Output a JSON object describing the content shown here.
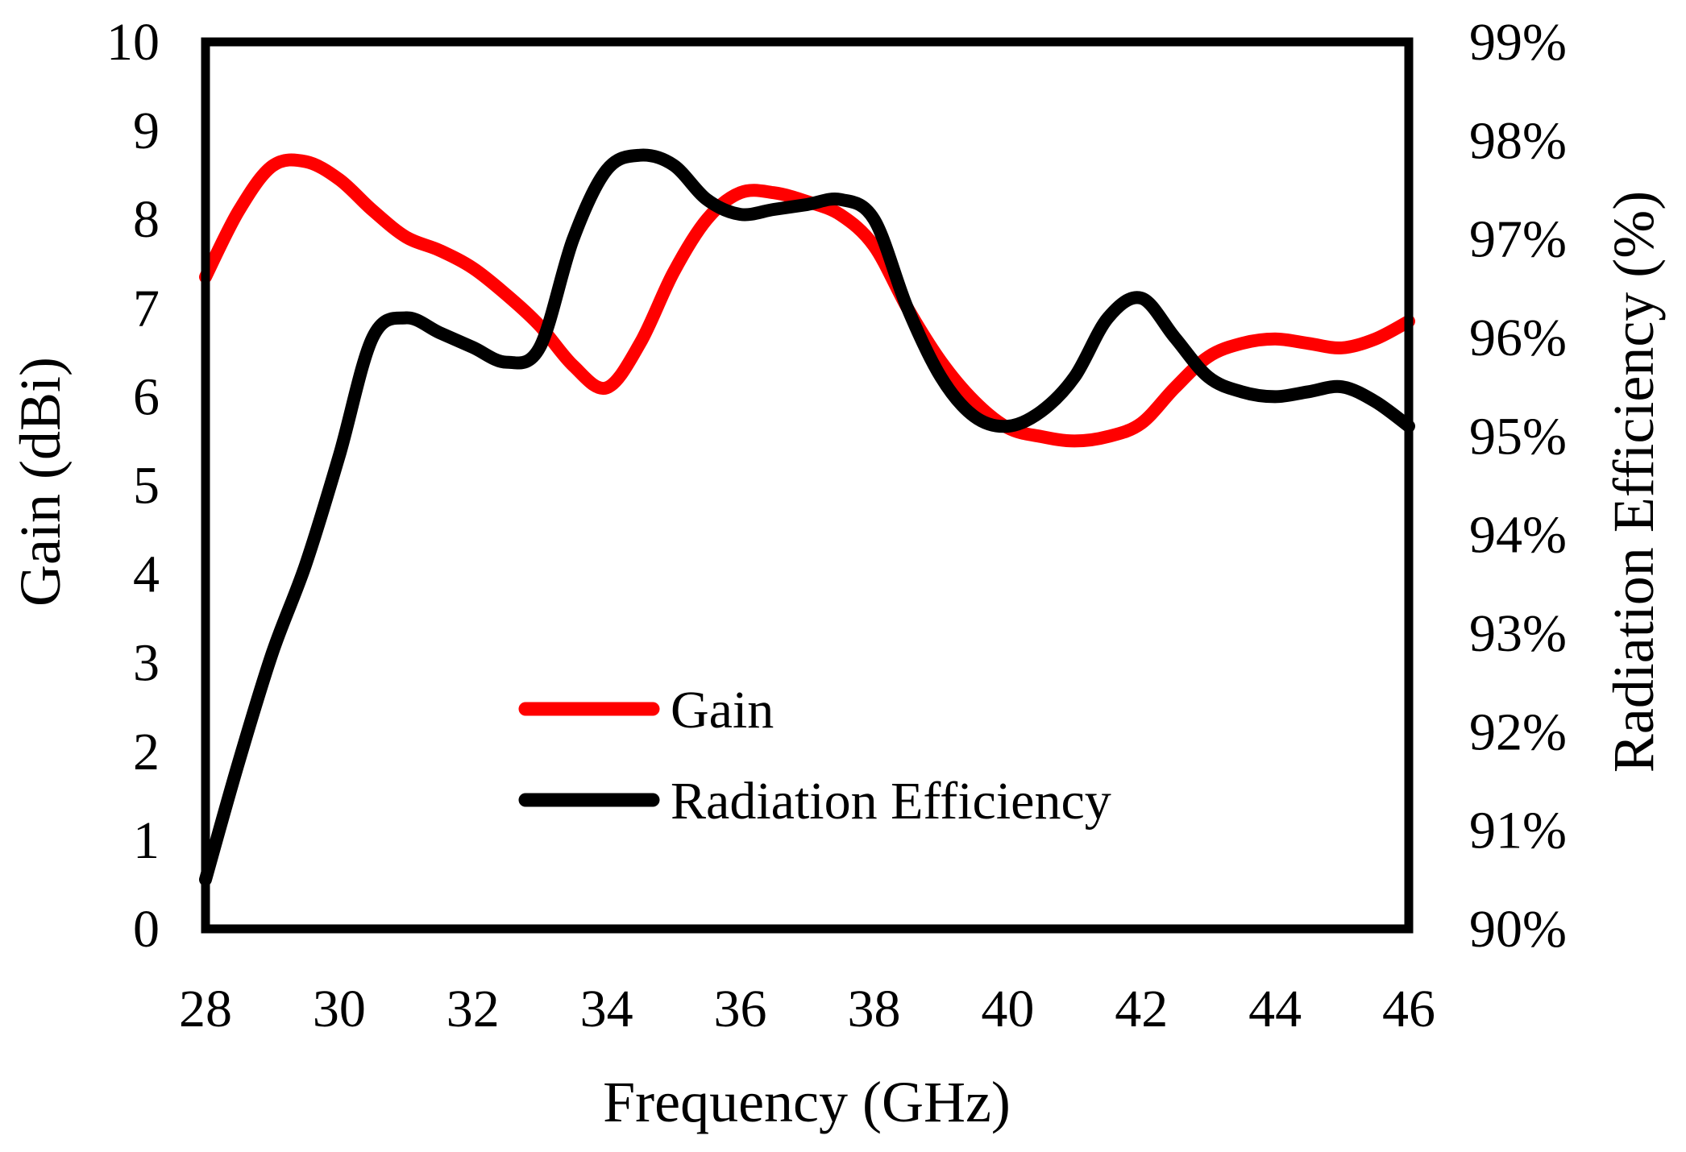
{
  "chart_data": {
    "type": "line",
    "xlabel": "Frequency (GHz)",
    "ylabel": "Gain (dBi)",
    "y2label": "Radiation Efficiency  (%)",
    "xlim": [
      28,
      46
    ],
    "ylim": [
      0,
      10
    ],
    "y2lim": [
      90,
      99
    ],
    "x_ticks": [
      "28",
      "30",
      "32",
      "34",
      "36",
      "38",
      "40",
      "42",
      "44",
      "46"
    ],
    "y_ticks": [
      "0",
      "1",
      "2",
      "3",
      "4",
      "5",
      "6",
      "7",
      "8",
      "9",
      "10"
    ],
    "y2_ticks": [
      "90%",
      "91%",
      "92%",
      "93%",
      "94%",
      "95%",
      "96%",
      "97%",
      "98%",
      "99%"
    ],
    "legend_position": "center-bottom",
    "series": [
      {
        "name": "Gain",
        "axis": "left",
        "color": "#ff0000",
        "x": [
          28,
          28.5,
          29,
          29.5,
          30,
          30.5,
          31,
          31.5,
          32,
          32.5,
          33,
          33.5,
          34,
          34.5,
          35,
          35.5,
          36,
          36.5,
          37,
          37.5,
          38,
          38.5,
          39,
          39.5,
          40,
          40.5,
          41,
          41.5,
          42,
          42.5,
          43,
          43.5,
          44,
          44.5,
          45,
          45.5,
          46
        ],
        "values": [
          7.35,
          8.1,
          8.6,
          8.65,
          8.45,
          8.1,
          7.8,
          7.65,
          7.45,
          7.15,
          6.8,
          6.35,
          6.1,
          6.6,
          7.4,
          8.0,
          8.3,
          8.3,
          8.2,
          8.05,
          7.7,
          7.0,
          6.4,
          5.95,
          5.65,
          5.55,
          5.5,
          5.55,
          5.7,
          6.1,
          6.45,
          6.6,
          6.65,
          6.6,
          6.55,
          6.65,
          6.85
        ]
      },
      {
        "name": "Radiation Efficiency",
        "axis": "right",
        "color": "#000000",
        "x": [
          28,
          28.5,
          29,
          29.5,
          30,
          30.5,
          31,
          31.5,
          32,
          32.5,
          33,
          33.5,
          34,
          34.5,
          35,
          35.5,
          36,
          36.5,
          37,
          37.5,
          38,
          38.5,
          39,
          39.5,
          40,
          40.5,
          41,
          41.5,
          42,
          42.5,
          43,
          43.5,
          44,
          44.5,
          45,
          45.5,
          46
        ],
        "values": [
          90.5,
          91.7,
          92.8,
          93.7,
          94.8,
          96.0,
          96.2,
          96.05,
          95.9,
          95.75,
          95.9,
          97.0,
          97.7,
          97.85,
          97.75,
          97.4,
          97.25,
          97.3,
          97.35,
          97.4,
          97.2,
          96.3,
          95.6,
          95.2,
          95.1,
          95.25,
          95.6,
          96.2,
          96.4,
          96.0,
          95.6,
          95.45,
          95.4,
          95.45,
          95.5,
          95.35,
          95.1
        ]
      }
    ]
  }
}
